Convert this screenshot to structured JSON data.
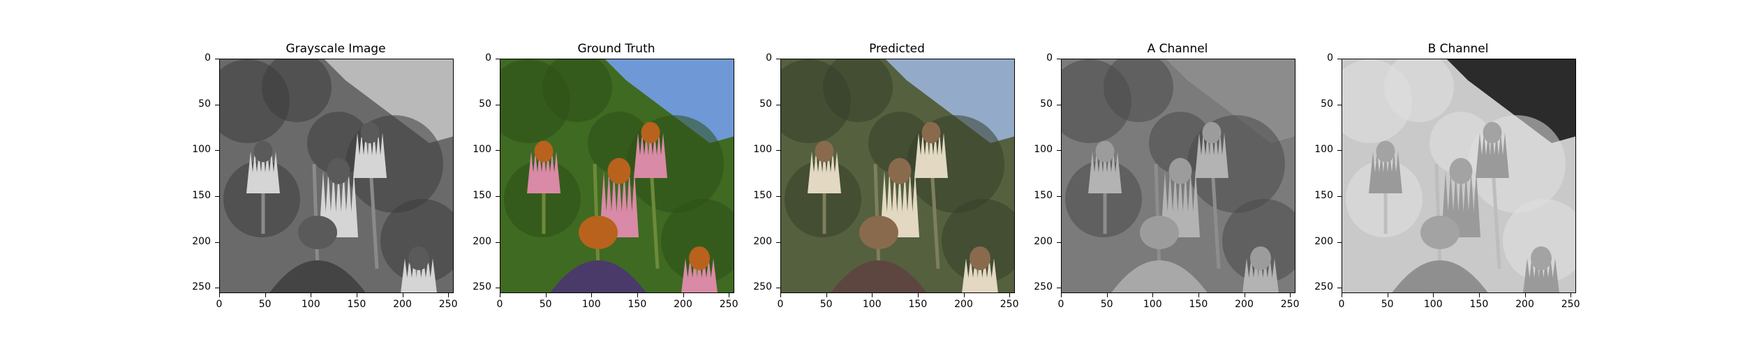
{
  "figure": {
    "panels": [
      {
        "id": "gray",
        "title": "Grayscale Image",
        "kind": "gray"
      },
      {
        "id": "truth",
        "title": "Ground Truth",
        "kind": "color"
      },
      {
        "id": "pred",
        "title": "Predicted",
        "kind": "muted"
      },
      {
        "id": "a",
        "title": "A Channel",
        "kind": "achannel"
      },
      {
        "id": "b",
        "title": "B Channel",
        "kind": "bchannel"
      }
    ],
    "y_ticks": [
      "0",
      "50",
      "100",
      "150",
      "200",
      "250"
    ],
    "x_ticks": [
      "0",
      "50",
      "100",
      "150",
      "200",
      "250"
    ],
    "axis_range": [
      0,
      256
    ]
  },
  "colors": {
    "frame": "#000000",
    "sky_blue": "#6e99d6",
    "foliage_green": "#3f6a22",
    "petal_pink": "#d98aa6",
    "cone_orange": "#b8621d"
  }
}
